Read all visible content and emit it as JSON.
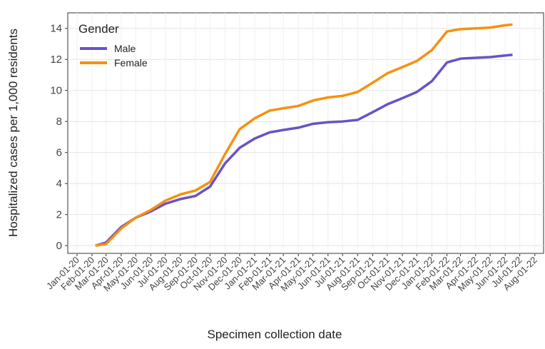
{
  "chart_data": {
    "type": "line",
    "ylabel": "Hospitalized cases per 1,000 residents",
    "xlabel": "Specimen collection date",
    "legend_title": "Gender",
    "legend": "top-left",
    "grid": true,
    "ylim": [
      -0.5,
      15
    ],
    "yticks": [
      0,
      2,
      4,
      6,
      8,
      10,
      12,
      14
    ],
    "xlim": [
      "Dec-13-19",
      "Aug-19-22"
    ],
    "xticks": [
      "Jan-01-20",
      "Feb-01-20",
      "Mar-01-20",
      "Apr-01-20",
      "May-01-20",
      "Jun-01-20",
      "Jul-01-20",
      "Aug-01-20",
      "Sep-01-20",
      "Oct-01-20",
      "Nov-01-20",
      "Dec-01-20",
      "Jan-01-21",
      "Feb-01-21",
      "Mar-01-21",
      "Apr-01-21",
      "May-01-21",
      "Jun-01-21",
      "Jul-01-21",
      "Aug-01-21",
      "Sep-01-21",
      "Oct-01-21",
      "Nov-01-21",
      "Dec-01-21",
      "Jan-01-22",
      "Feb-01-22",
      "Mar-01-22",
      "Apr-01-22",
      "May-01-22",
      "Jun-01-22",
      "Jul-01-22",
      "Aug-01-22"
    ],
    "x": [
      "Feb-08-20",
      "Mar-01-20",
      "Apr-01-20",
      "May-01-20",
      "Jun-01-20",
      "Jul-01-20",
      "Aug-01-20",
      "Sep-01-20",
      "Oct-01-20",
      "Nov-01-20",
      "Dec-01-20",
      "Jan-01-21",
      "Feb-01-21",
      "Mar-01-21",
      "Apr-01-21",
      "May-01-21",
      "Jun-01-21",
      "Jul-01-21",
      "Aug-01-21",
      "Sep-01-21",
      "Oct-01-21",
      "Nov-01-21",
      "Dec-01-21",
      "Jan-01-22",
      "Feb-01-22",
      "Mar-01-22",
      "Apr-01-22",
      "May-01-22",
      "Jun-01-22",
      "Jun-16-22"
    ],
    "series": [
      {
        "name": "Male",
        "color": "#6a51c8",
        "values": [
          0,
          0.2,
          1.2,
          1.8,
          2.2,
          2.7,
          3.0,
          3.2,
          3.8,
          5.3,
          6.3,
          6.9,
          7.3,
          7.45,
          7.6,
          7.85,
          7.95,
          8.0,
          8.1,
          8.6,
          9.1,
          9.5,
          9.9,
          10.6,
          11.8,
          12.05,
          12.1,
          12.15,
          12.25,
          12.3
        ]
      },
      {
        "name": "Female",
        "color": "#f5920e",
        "values": [
          0,
          0.1,
          1.1,
          1.8,
          2.3,
          2.9,
          3.3,
          3.55,
          4.1,
          5.9,
          7.5,
          8.2,
          8.7,
          8.85,
          9.0,
          9.35,
          9.55,
          9.65,
          9.9,
          10.5,
          11.1,
          11.5,
          11.9,
          12.6,
          13.8,
          13.95,
          14.0,
          14.05,
          14.2,
          14.25
        ]
      }
    ]
  }
}
